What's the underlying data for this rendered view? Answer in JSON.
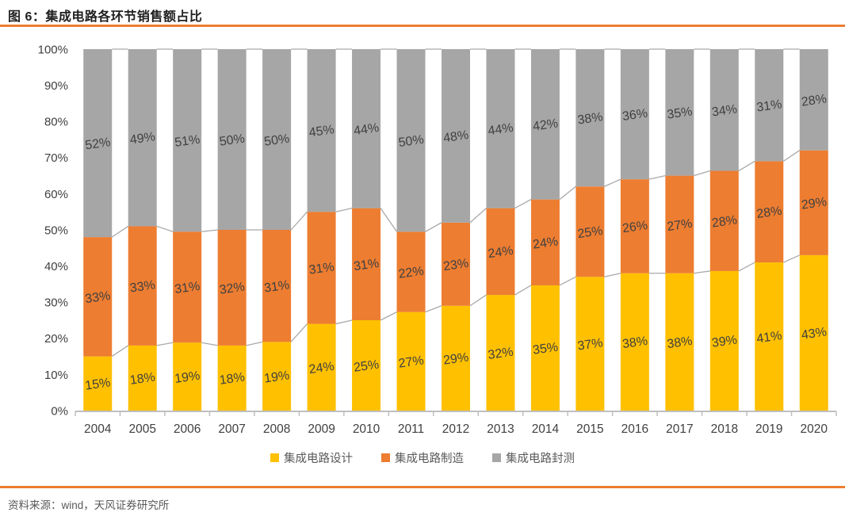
{
  "page": {
    "title": "图 6：集成电路各环节销售额占比",
    "source": "资料来源：wind，天风证券研究所",
    "accent_color": "#ED7D31"
  },
  "chart_data": {
    "type": "bar",
    "stacked": true,
    "title": "集成电路各环节销售额占比",
    "categories": [
      "2004",
      "2005",
      "2006",
      "2007",
      "2008",
      "2009",
      "2010",
      "2011",
      "2012",
      "2013",
      "2014",
      "2015",
      "2016",
      "2017",
      "2018",
      "2019",
      "2020"
    ],
    "series": [
      {
        "name": "集成电路设计",
        "color": "#FFC000",
        "values": [
          15,
          18,
          19,
          18,
          19,
          24,
          25,
          27,
          29,
          32,
          35,
          37,
          38,
          38,
          39,
          41,
          43
        ]
      },
      {
        "name": "集成电路制造",
        "color": "#ED7D31",
        "values": [
          33,
          33,
          31,
          32,
          31,
          31,
          31,
          22,
          23,
          24,
          24,
          25,
          26,
          27,
          28,
          28,
          29
        ]
      },
      {
        "name": "集成电路封测",
        "color": "#A6A6A6",
        "values": [
          52,
          49,
          51,
          50,
          50,
          45,
          44,
          50,
          48,
          44,
          42,
          38,
          36,
          35,
          34,
          31,
          28
        ]
      }
    ],
    "y_ticks": [
      0,
      10,
      20,
      30,
      40,
      50,
      60,
      70,
      80,
      90,
      100
    ],
    "y_tick_suffix": "%",
    "ylim": [
      0,
      100
    ],
    "data_label_suffix": "%",
    "legend_position": "bottom",
    "grid": false,
    "series_line_color": "#A9A9A9",
    "axis_color": "#BFBFBF",
    "text_color": "#404040"
  }
}
